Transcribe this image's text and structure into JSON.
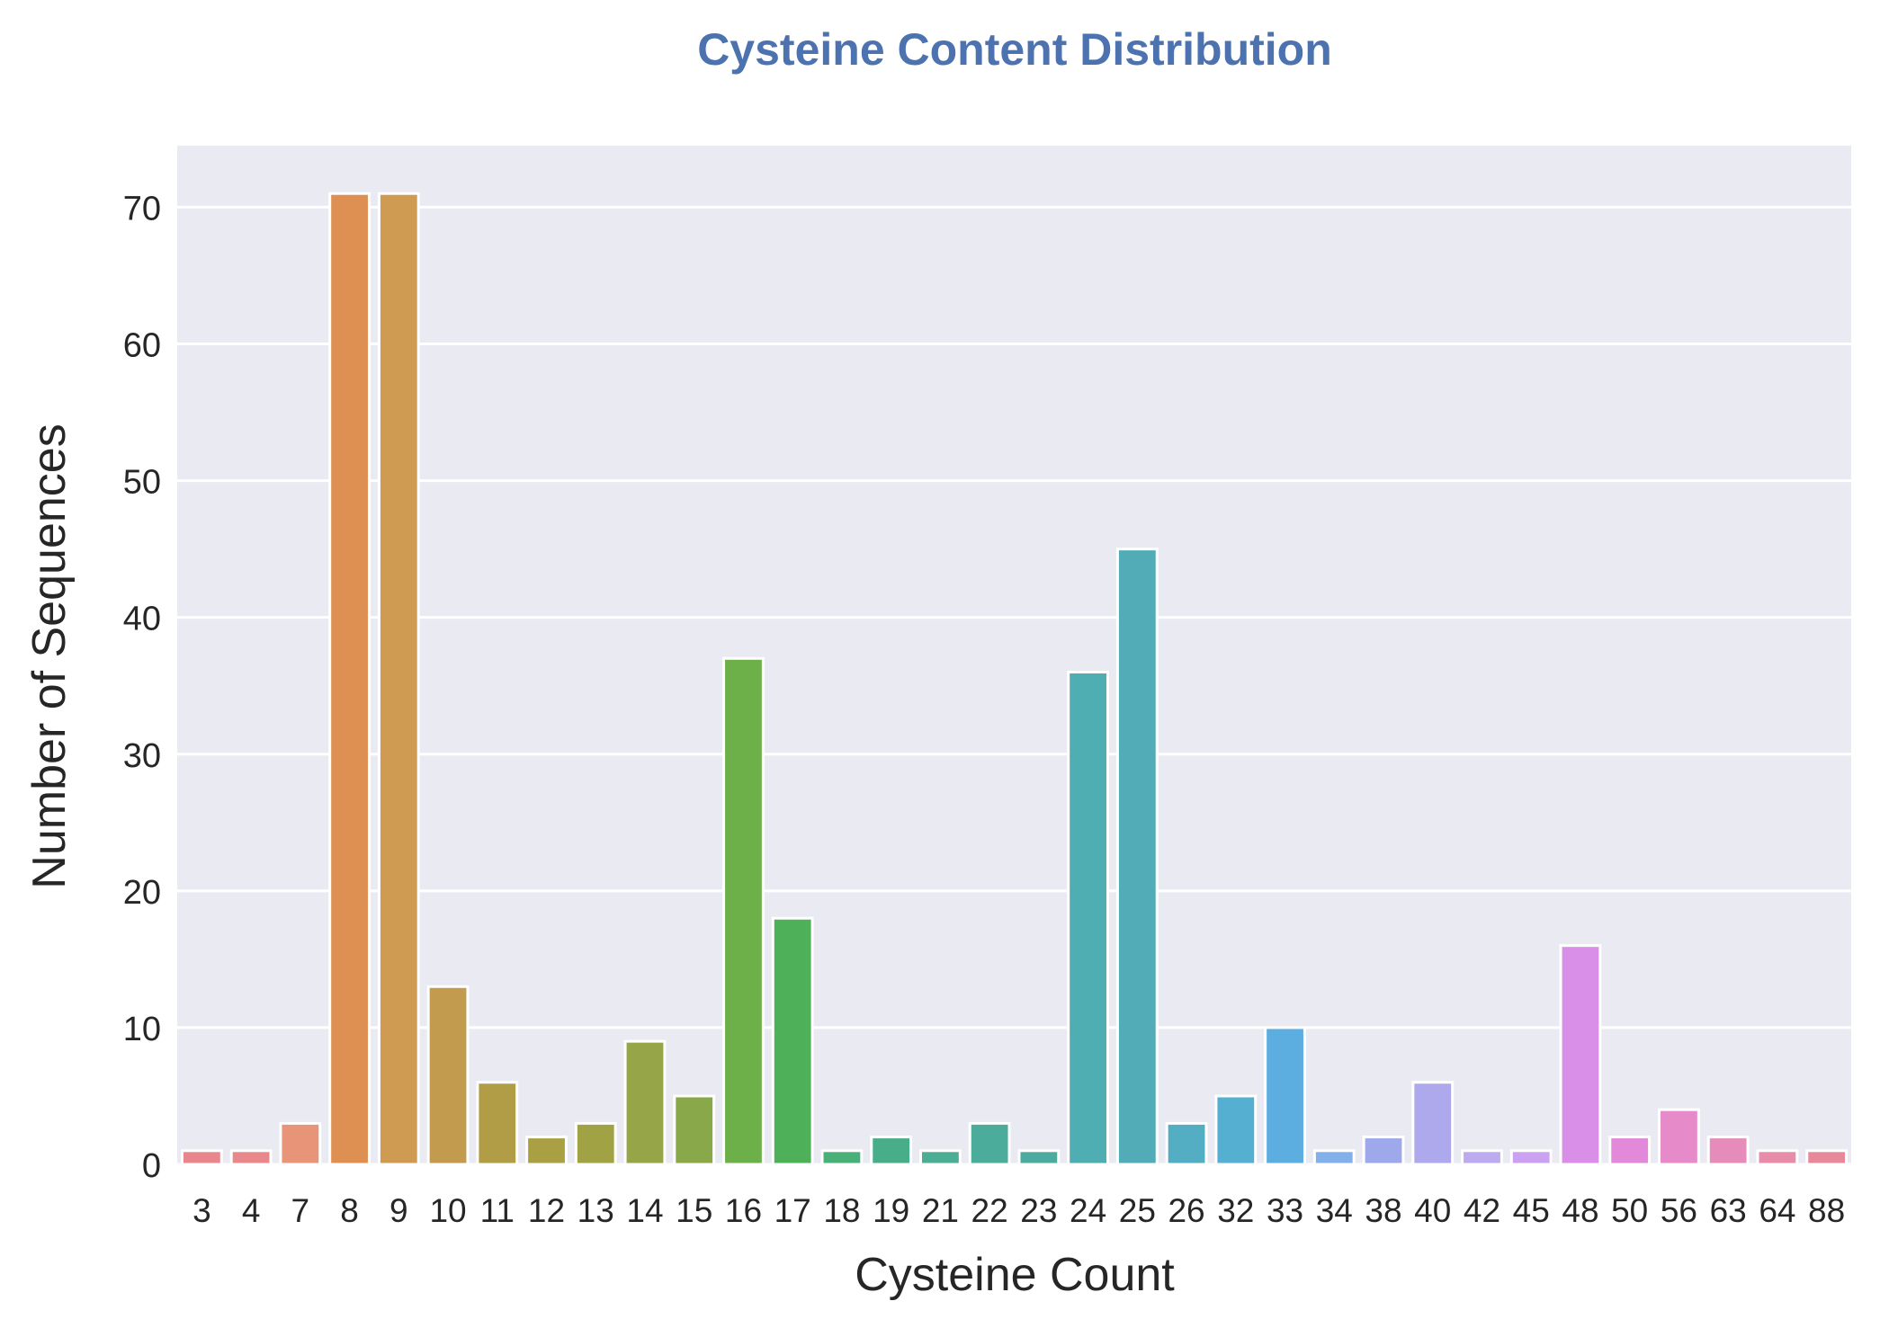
{
  "chart_data": {
    "type": "bar",
    "title": "Cysteine Content Distribution",
    "xlabel": "Cysteine Count",
    "ylabel": "Number of Sequences",
    "categories": [
      "3",
      "4",
      "7",
      "8",
      "9",
      "10",
      "11",
      "12",
      "13",
      "14",
      "15",
      "16",
      "17",
      "18",
      "19",
      "21",
      "22",
      "23",
      "24",
      "25",
      "26",
      "32",
      "33",
      "34",
      "38",
      "40",
      "42",
      "45",
      "48",
      "50",
      "56",
      "63",
      "64",
      "88"
    ],
    "values": [
      1,
      1,
      3,
      71,
      71,
      13,
      6,
      2,
      3,
      9,
      5,
      37,
      18,
      1,
      2,
      1,
      3,
      1,
      36,
      45,
      3,
      5,
      10,
      1,
      2,
      6,
      1,
      1,
      16,
      2,
      4,
      2,
      1,
      1
    ],
    "colors": [
      "#e8868d",
      "#e8888a",
      "#e89479",
      "#dd9051",
      "#cf9a52",
      "#c29b4f",
      "#b29d47",
      "#a9a044",
      "#a0a244",
      "#96a547",
      "#88a849",
      "#6daf48",
      "#4eb15a",
      "#49b078",
      "#48ae8a",
      "#4aad94",
      "#4bac9c",
      "#4cab9f",
      "#4eaeb2",
      "#51acb8",
      "#53aec4",
      "#55afd1",
      "#5caee0",
      "#82b1ea",
      "#9da9ea",
      "#ada9ec",
      "#bdaaef",
      "#cba1f1",
      "#d98fe8",
      "#e289d9",
      "#e68ac9",
      "#e68cbb",
      "#e78da9",
      "#e8899a"
    ],
    "ylim": [
      0,
      74.5
    ],
    "yticks": [
      0,
      10,
      20,
      30,
      40,
      50,
      60,
      70
    ],
    "grid": true,
    "title_color": "#4c72b0",
    "plot_background": "#eaeaf2"
  }
}
